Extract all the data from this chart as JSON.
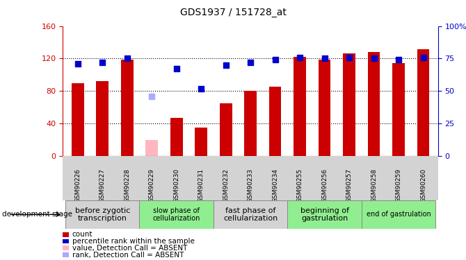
{
  "title": "GDS1937 / 151728_at",
  "samples": [
    "GSM90226",
    "GSM90227",
    "GSM90228",
    "GSM90229",
    "GSM90230",
    "GSM90231",
    "GSM90232",
    "GSM90233",
    "GSM90234",
    "GSM90255",
    "GSM90256",
    "GSM90257",
    "GSM90258",
    "GSM90259",
    "GSM90260"
  ],
  "bar_values": [
    90,
    92,
    119,
    20,
    47,
    35,
    65,
    80,
    85,
    122,
    119,
    126,
    128,
    114,
    131
  ],
  "bar_colors": [
    "#cc0000",
    "#cc0000",
    "#cc0000",
    "#ffb6c1",
    "#cc0000",
    "#cc0000",
    "#cc0000",
    "#cc0000",
    "#cc0000",
    "#cc0000",
    "#cc0000",
    "#cc0000",
    "#cc0000",
    "#cc0000",
    "#cc0000"
  ],
  "dot_values": [
    71,
    72,
    75,
    46,
    67,
    52,
    70,
    72,
    74,
    76,
    75,
    76,
    75,
    74,
    76
  ],
  "dot_colors": [
    "#0000cc",
    "#0000cc",
    "#0000cc",
    "#aaaaff",
    "#0000cc",
    "#0000cc",
    "#0000cc",
    "#0000cc",
    "#0000cc",
    "#0000cc",
    "#0000cc",
    "#0000cc",
    "#0000cc",
    "#0000cc",
    "#0000cc"
  ],
  "ylim_left": [
    0,
    160
  ],
  "ylim_right": [
    0,
    100
  ],
  "yticks_left": [
    0,
    40,
    80,
    120,
    160
  ],
  "ytick_labels_right": [
    "0",
    "25",
    "50",
    "75",
    "100%"
  ],
  "stage_groups": [
    {
      "label": "before zygotic\ntranscription",
      "samples": [
        "GSM90226",
        "GSM90227",
        "GSM90228"
      ],
      "color": "#d3d3d3",
      "fontsize": 8
    },
    {
      "label": "slow phase of\ncellularization",
      "samples": [
        "GSM90229",
        "GSM90230",
        "GSM90231"
      ],
      "color": "#90ee90",
      "fontsize": 7
    },
    {
      "label": "fast phase of\ncellularization",
      "samples": [
        "GSM90232",
        "GSM90233",
        "GSM90234"
      ],
      "color": "#d3d3d3",
      "fontsize": 8
    },
    {
      "label": "beginning of\ngastrulation",
      "samples": [
        "GSM90255",
        "GSM90256",
        "GSM90257"
      ],
      "color": "#90ee90",
      "fontsize": 8
    },
    {
      "label": "end of gastrulation",
      "samples": [
        "GSM90258",
        "GSM90259",
        "GSM90260"
      ],
      "color": "#90ee90",
      "fontsize": 7
    }
  ],
  "dev_stage_label": "development stage",
  "legend_items": [
    {
      "color": "#cc0000",
      "label": "count"
    },
    {
      "color": "#0000cc",
      "label": "percentile rank within the sample"
    },
    {
      "color": "#ffb6c1",
      "label": "value, Detection Call = ABSENT"
    },
    {
      "color": "#aaaaff",
      "label": "rank, Detection Call = ABSENT"
    }
  ],
  "bar_width": 0.5,
  "dot_size": 30,
  "axis_color_left": "#cc0000",
  "axis_color_right": "#0000cc",
  "grid_yticks": [
    40,
    80,
    120
  ]
}
